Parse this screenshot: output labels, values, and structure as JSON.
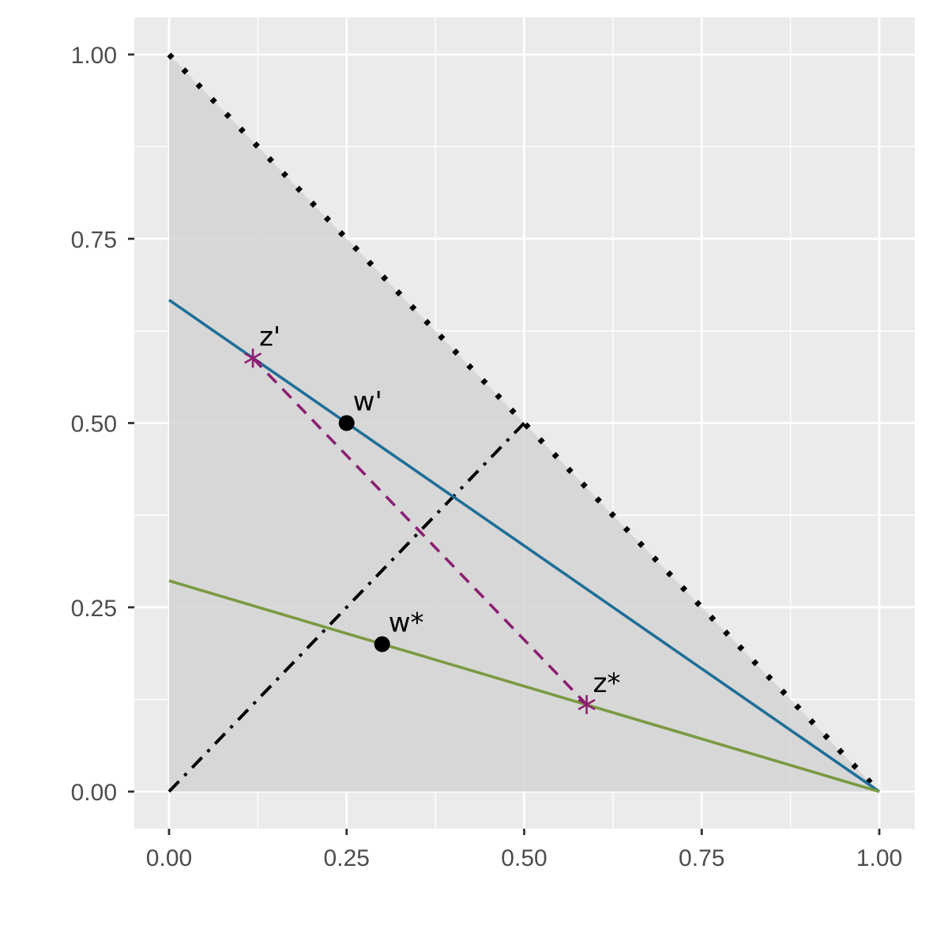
{
  "chart_data": {
    "type": "line",
    "title": "",
    "xlabel": "",
    "ylabel": "",
    "xlim": [
      -0.05,
      1.05
    ],
    "ylim": [
      -0.05,
      1.05
    ],
    "grid": true,
    "legend": "none",
    "x_ticks": [
      "0.00",
      "0.25",
      "0.50",
      "0.75",
      "1.00"
    ],
    "y_ticks": [
      "0.00",
      "0.25",
      "0.50",
      "0.75",
      "1.00"
    ],
    "simplex_region": [
      [
        0,
        0
      ],
      [
        1,
        0
      ],
      [
        0,
        1
      ]
    ],
    "lines": [
      {
        "id": "simplex-edge",
        "points": [
          [
            0,
            1
          ],
          [
            1,
            0
          ]
        ],
        "style": "dotted",
        "color": "#000000"
      },
      {
        "id": "diagonal",
        "points": [
          [
            0,
            0
          ],
          [
            0.5,
            0.5
          ]
        ],
        "style": "dashdot",
        "color": "#000000"
      },
      {
        "id": "blue-line",
        "points": [
          [
            0,
            0.667
          ],
          [
            1,
            0
          ]
        ],
        "style": "solid",
        "color": "#1f6f97"
      },
      {
        "id": "green-line",
        "points": [
          [
            0,
            0.286
          ],
          [
            1,
            0
          ]
        ],
        "style": "solid",
        "color": "#7a9a42"
      },
      {
        "id": "purple-dashed",
        "points": [
          [
            0.118,
            0.588
          ],
          [
            0.588,
            0.118
          ]
        ],
        "style": "dashed",
        "color": "#8b1f72"
      }
    ],
    "points": [
      {
        "id": "w-prime",
        "label": "w'",
        "x": 0.25,
        "y": 0.5,
        "shape": "circle",
        "color": "#000000"
      },
      {
        "id": "w-star",
        "label": "w*",
        "x": 0.3,
        "y": 0.2,
        "shape": "circle",
        "color": "#000000"
      },
      {
        "id": "z-prime",
        "label": "z'",
        "x": 0.118,
        "y": 0.588,
        "shape": "asterisk",
        "color": "#8b1f72"
      },
      {
        "id": "z-star",
        "label": "z*",
        "x": 0.588,
        "y": 0.118,
        "shape": "asterisk",
        "color": "#8b1f72"
      }
    ]
  },
  "colors": {
    "panel_background": "#ebebeb",
    "region_fill": "#d3d3d3",
    "grid_line": "#ffffff",
    "tick_text": "#4d4d4d"
  }
}
